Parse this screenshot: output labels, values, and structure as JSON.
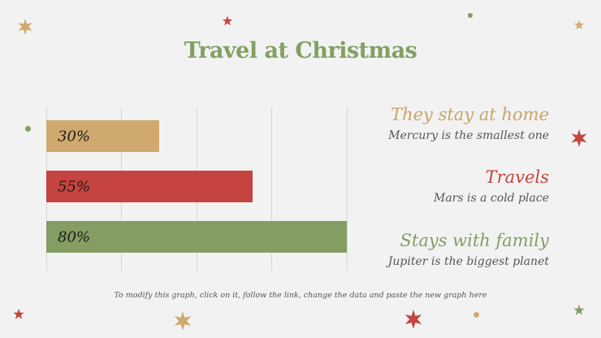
{
  "slide": {
    "title": "Travel at Christmas",
    "footnote": "To modify this graph, click on it, follow the link, change the data and paste the new graph here"
  },
  "colors": {
    "background": "#f2f2f2",
    "gold": "#cfa96d",
    "red": "#c5443f",
    "green": "#849d62",
    "gridline": "#d6d6d6",
    "text_gray": "#555555"
  },
  "bars": [
    {
      "label": "30%",
      "value": 30,
      "color": "#cfa96d"
    },
    {
      "label": "55%",
      "value": 55,
      "color": "#c5443f"
    },
    {
      "label": "80%",
      "value": 80,
      "color": "#849d62"
    }
  ],
  "legend": [
    {
      "title": "They stay at home",
      "desc": "Mercury is the smallest one",
      "color": "#c9a46b"
    },
    {
      "title": "Travels",
      "desc": "Mars is a cold place",
      "color": "#c5443f"
    },
    {
      "title": "Stays with family",
      "desc": "Jupiter is the biggest planet",
      "color": "#849d62"
    }
  ],
  "decorations": {
    "icons": [
      "six-point-star-icon",
      "five-point-star-icon",
      "dot-icon"
    ]
  },
  "chart_data": {
    "type": "bar",
    "orientation": "horizontal",
    "title": "Travel at Christmas",
    "categories": [
      "They stay at home",
      "Travels",
      "Stays with family"
    ],
    "values": [
      30,
      55,
      80
    ],
    "data_labels": [
      "30%",
      "55%",
      "80%"
    ],
    "xlabel": "",
    "ylabel": "",
    "xlim": [
      0,
      80
    ],
    "grid": {
      "vertical": true,
      "gridline_values": [
        0,
        20,
        40,
        60,
        80
      ]
    },
    "axis_tick_labels_visible": false,
    "legend_position": "right",
    "series_colors": [
      "#cfa96d",
      "#c5443f",
      "#849d62"
    ]
  }
}
